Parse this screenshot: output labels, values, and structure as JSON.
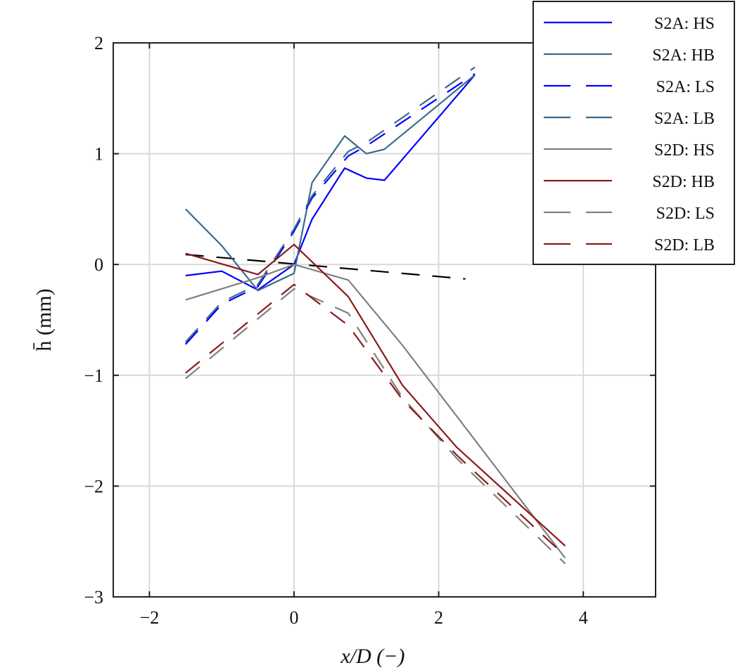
{
  "chart_data": {
    "type": "line",
    "title": "",
    "xlabel": "x/D (−)",
    "ylabel": "h̄ (mm)",
    "xlim": [
      -2.5,
      5
    ],
    "ylim": [
      -3,
      2
    ],
    "xticks": [
      -2,
      0,
      2,
      4
    ],
    "xtick_labels": [
      "−2",
      "0",
      "2",
      "4"
    ],
    "yticks": [
      -3,
      -2,
      -1,
      0,
      1,
      2
    ],
    "ytick_labels": [
      "−3",
      "−2",
      "−1",
      "0",
      "1",
      "2"
    ],
    "grid": true,
    "legend_position": "top-right",
    "series": [
      {
        "name": "S2A: HS",
        "color": "#0000ff",
        "dash": false,
        "x": [
          -1.5,
          -1,
          -0.5,
          0,
          0.25,
          0.7,
          1,
          1.25,
          2.5
        ],
        "y": [
          -0.1,
          -0.06,
          -0.23,
          0,
          0.41,
          0.87,
          0.78,
          0.76,
          1.71
        ]
      },
      {
        "name": "S2A: HB",
        "color": "#3a6a8c",
        "dash": false,
        "x": [
          -1.5,
          -1,
          -0.5,
          0,
          0.25,
          0.7,
          1,
          1.25,
          2.5
        ],
        "y": [
          0.5,
          0.17,
          -0.235,
          -0.08,
          0.74,
          1.16,
          1.0,
          1.04,
          1.71
        ]
      },
      {
        "name": "S2A: LS",
        "color": "#0000ff",
        "dash": true,
        "x": [
          -1.5,
          -1,
          -0.5,
          0,
          0.25,
          0.75,
          1,
          2.5
        ],
        "y": [
          -0.72,
          -0.36,
          -0.2,
          0.3,
          0.6,
          0.98,
          1.07,
          1.72
        ]
      },
      {
        "name": "S2A: LB",
        "color": "#3a6a8c",
        "dash": true,
        "x": [
          -1.5,
          -1,
          -0.5,
          0,
          0.25,
          0.75,
          1,
          2.5
        ],
        "y": [
          -0.7,
          -0.34,
          -0.18,
          0.32,
          0.62,
          1.02,
          1.1,
          1.78
        ]
      },
      {
        "name": "S2D: HS",
        "color": "#808080",
        "dash": false,
        "x": [
          -1.5,
          -0.5,
          0,
          0.75,
          1.5,
          3.75
        ],
        "y": [
          -0.32,
          -0.12,
          0,
          -0.14,
          -0.73,
          -2.65
        ]
      },
      {
        "name": "S2D: HB",
        "color": "#8b1a1a",
        "dash": false,
        "x": [
          -1.5,
          -0.5,
          0,
          0.75,
          1.5,
          2.25,
          3.75
        ],
        "y": [
          0.1,
          -0.09,
          0.18,
          -0.29,
          -1.09,
          -1.65,
          -2.54
        ]
      },
      {
        "name": "S2D: LS",
        "color": "#808080",
        "dash": true,
        "x": [
          -1.5,
          0,
          0.75,
          1.5,
          2.25,
          3.75
        ],
        "y": [
          -1.03,
          -0.22,
          -0.44,
          -1.2,
          -1.75,
          -2.7
        ]
      },
      {
        "name": "S2D: LB",
        "color": "#8b1a1a",
        "dash": true,
        "x": [
          -1.5,
          0,
          0.75,
          1.5,
          2.25,
          3.75
        ],
        "y": [
          -0.98,
          -0.18,
          -0.55,
          -1.22,
          -1.72,
          -2.63
        ]
      }
    ],
    "trend_line": {
      "color": "#000000",
      "dash": true,
      "x": [
        -1.5,
        2.37
      ],
      "y": [
        0.09,
        -0.13
      ]
    }
  }
}
